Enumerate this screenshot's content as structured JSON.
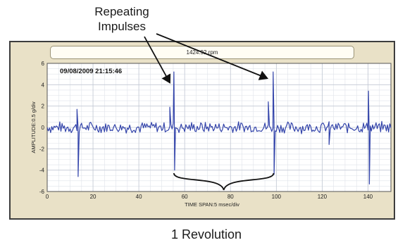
{
  "annotations": {
    "top_line1": "Repeating",
    "top_line2": "Impulses",
    "bottom": "1 Revolution"
  },
  "header": {
    "rpm": "1424.92  rpm",
    "timestamp": "09/08/2009 21:15:46"
  },
  "chart_data": {
    "type": "line",
    "xlabel": "TIME SPAN:5 msec/div",
    "ylabel": "AMPLITUDE:0.5 g/div",
    "xlim": [
      0,
      150
    ],
    "ylim": [
      -6,
      6
    ],
    "x_ticks": [
      0,
      20,
      40,
      60,
      80,
      100,
      120,
      140
    ],
    "y_ticks": [
      -6,
      -4,
      -2,
      0,
      2,
      4,
      6
    ],
    "grid": true,
    "series": [
      {
        "color": "#3344aa",
        "sample_step": 0.5,
        "noise_amplitude": 0.6,
        "impulses": [
          {
            "x": 13.5,
            "value": -4.6
          },
          {
            "x": 13.0,
            "value": 1.7
          },
          {
            "x": 53.5,
            "value": 1.9
          },
          {
            "x": 55.3,
            "value": 5.2
          },
          {
            "x": 55.6,
            "value": -4.0
          },
          {
            "x": 96.5,
            "value": 2.4
          },
          {
            "x": 98.6,
            "value": 5.2
          },
          {
            "x": 99.0,
            "value": -4.4
          },
          {
            "x": 123.0,
            "value": -1.6
          },
          {
            "x": 140.2,
            "value": 3.4
          },
          {
            "x": 140.6,
            "value": -5.3
          }
        ]
      }
    ]
  }
}
